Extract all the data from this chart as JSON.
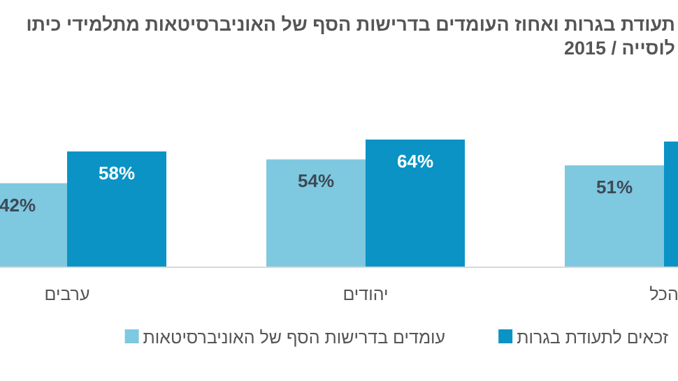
{
  "chart_data": {
    "type": "bar",
    "title": "תעודת בגרות ואחוז העומדים בדרישות הסף של האוניברסיטאות מתלמידי כיתו",
    "subtitle": "לוסייה / 2015",
    "categories": [
      "ערבים",
      "יהודים",
      "הכל"
    ],
    "series": [
      {
        "name": "זכאים לתעודת בגרות",
        "color": "#0a93c4",
        "values": [
          58,
          64,
          63
        ],
        "value_labels": [
          "58%",
          "64%",
          null
        ]
      },
      {
        "name": "עומדים בדרישות הסף של האוניברסיטאות",
        "color": "#7ec8e0",
        "values": [
          42,
          54,
          51
        ],
        "value_labels": [
          "42%",
          "54%",
          "51%"
        ]
      }
    ],
    "legend": "bottom",
    "grid": false
  }
}
